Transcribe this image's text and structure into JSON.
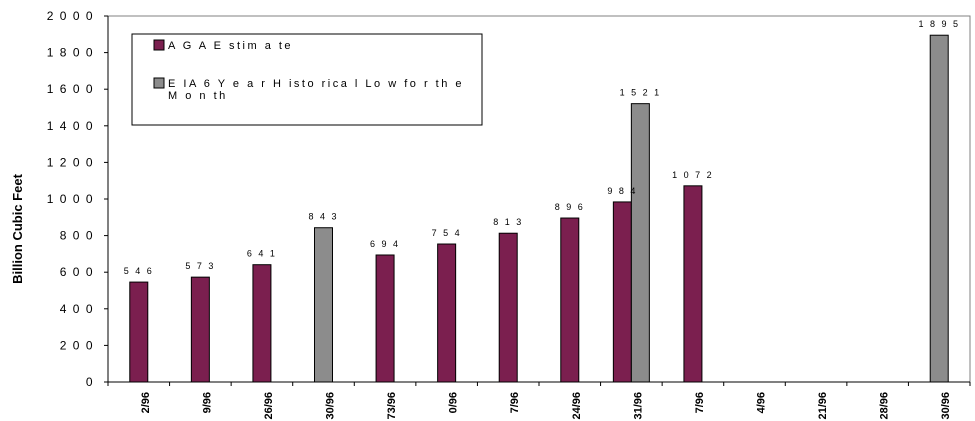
{
  "chart_data": {
    "type": "bar",
    "ylabel": "Billion Cubic Feet",
    "ylim": [
      0,
      2000
    ],
    "yticks": [
      "0",
      "2 0 0",
      "4 0 0",
      "6 0 0",
      "8 0 0",
      "1 0 0 0",
      "1 2 0 0",
      "1 4 0 0",
      "1 6 0 0",
      "1 8 0 0",
      "2 0 0 0"
    ],
    "categories": [
      "2/96",
      "9/96",
      "26/96",
      "30/96",
      "73/96",
      "0/96",
      "7/96",
      "24/96",
      "31/96",
      "7/96",
      "4/96",
      "21/96",
      "28/96",
      "30/96"
    ],
    "legend_position": "top-left",
    "grid": false,
    "series": [
      {
        "name": "A G A  E stim a te",
        "color": "#7b1f4f",
        "values": [
          546,
          573,
          641,
          null,
          694,
          754,
          813,
          896,
          984,
          1072,
          null,
          null,
          null,
          null
        ]
      },
      {
        "name": "E IA  6  Y e a r  H isto ric a l Lo w  fo r th e  M o n th",
        "color": "#8c8c8c",
        "values": [
          null,
          null,
          null,
          843,
          null,
          null,
          null,
          null,
          1521,
          null,
          null,
          null,
          null,
          1895
        ]
      }
    ],
    "data_labels": {
      "546": "5 4 6",
      "573": "5 7 3",
      "641": "6 4 1",
      "843": "8 4 3",
      "694": "6 9 4",
      "754": "7 5 4",
      "813": "8 1 3",
      "896": "8 9 6",
      "984": "9 8 4",
      "1521": "1 5 2 1",
      "1072": "1 0 7 2",
      "1895": "1 8 9 5"
    },
    "legend_lines": [
      [
        "A G A  E stim a te"
      ],
      [
        "E IA  6  Y e a r  H isto rica l Lo w  fo r th e",
        "M o n th"
      ]
    ]
  }
}
